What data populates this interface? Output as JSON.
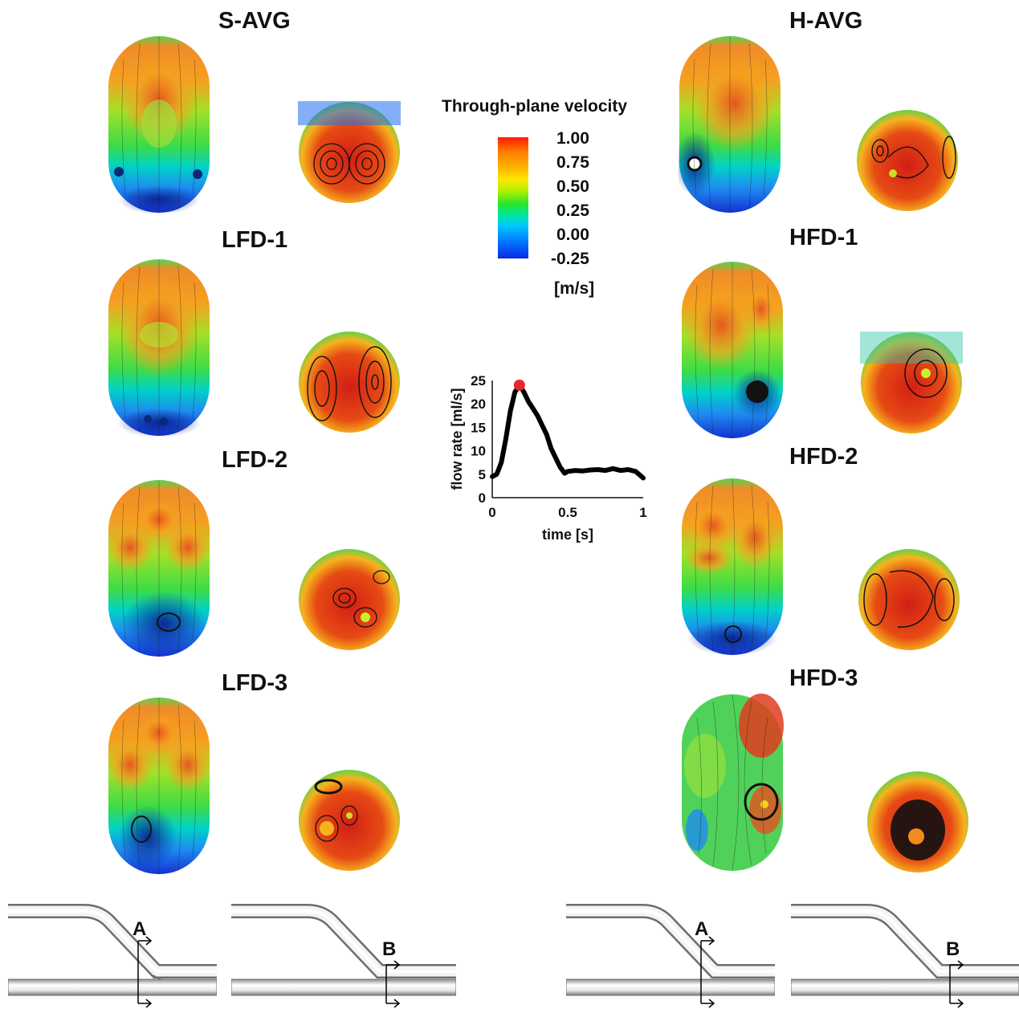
{
  "panels": [
    {
      "label": "S-AVG"
    },
    {
      "label": "LFD-1"
    },
    {
      "label": "LFD-2"
    },
    {
      "label": "LFD-3"
    },
    {
      "label": "H-AVG"
    },
    {
      "label": "HFD-1"
    },
    {
      "label": "HFD-2"
    },
    {
      "label": "HFD-3"
    }
  ],
  "legend": {
    "title": "Through-plane velocity",
    "ticks": [
      "1.00",
      "0.75",
      "0.50",
      "0.25",
      "0.00",
      "-0.25"
    ],
    "unit": "[m/s]"
  },
  "chart_data": {
    "type": "line",
    "xlabel": "time [s]",
    "ylabel": "flow rate [ml/s]",
    "xlim": [
      0,
      1
    ],
    "ylim": [
      0,
      25
    ],
    "xticks": [
      "0",
      "0.5",
      "1"
    ],
    "yticks": [
      "0",
      "5",
      "10",
      "15",
      "20",
      "25"
    ],
    "x": [
      0,
      0.03,
      0.06,
      0.09,
      0.12,
      0.15,
      0.18,
      0.21,
      0.24,
      0.27,
      0.3,
      0.33,
      0.36,
      0.39,
      0.42,
      0.45,
      0.48,
      0.5,
      0.55,
      0.6,
      0.65,
      0.7,
      0.75,
      0.8,
      0.85,
      0.9,
      0.95,
      1.0
    ],
    "y": [
      4.5,
      5.0,
      7.5,
      12.5,
      18.5,
      22.5,
      24.0,
      22.5,
      20.5,
      19.0,
      17.5,
      15.5,
      13.5,
      10.5,
      8.5,
      6.5,
      5.2,
      5.6,
      5.8,
      5.7,
      5.9,
      6.0,
      5.8,
      6.2,
      5.8,
      6.0,
      5.6,
      4.2
    ],
    "marker": {
      "x": 0.18,
      "y": 24.0,
      "color": "#e8262d"
    }
  },
  "schematics": [
    {
      "label": "A"
    },
    {
      "label": "B"
    },
    {
      "label": "A"
    },
    {
      "label": "B"
    }
  ],
  "colors": {
    "red": "#e0281e",
    "orange": "#ff8c1e",
    "yellow": "#f5d21e",
    "green": "#32dc32",
    "cyan": "#00c8ff",
    "blue": "#1e3cdc",
    "darkblue": "#0a1e96",
    "marker": "#e8262d"
  }
}
